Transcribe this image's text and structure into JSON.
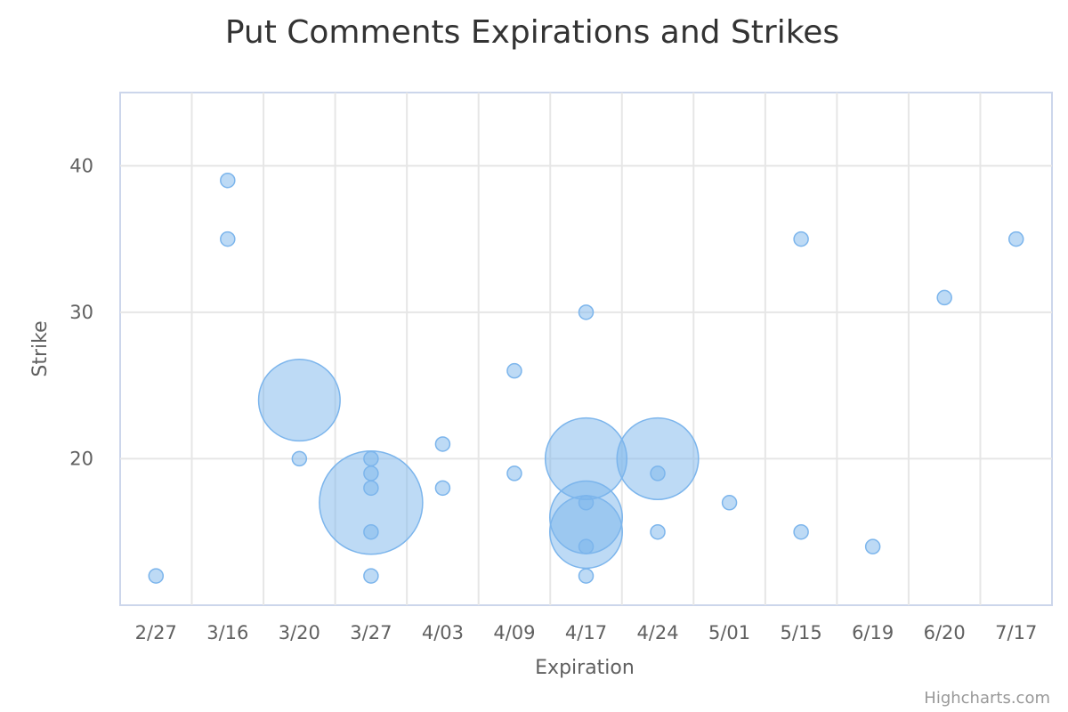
{
  "chart_data": {
    "type": "bubble",
    "title": "Put Comments Expirations and Strikes",
    "xlabel": "Expiration",
    "ylabel": "Strike",
    "categories": [
      "2/27",
      "3/16",
      "3/20",
      "3/27",
      "4/03",
      "4/09",
      "4/17",
      "4/24",
      "5/01",
      "5/15",
      "6/19",
      "6/20",
      "7/17"
    ],
    "ylim": [
      10,
      45
    ],
    "yticks": [
      20,
      30,
      40
    ],
    "grid": true,
    "legend": "none",
    "colors": {
      "fill": "rgba(124,181,236,0.5)",
      "stroke": "#7cb5ec"
    },
    "series": [
      {
        "points": [
          {
            "x": "2/27",
            "y": 12,
            "z": 1
          },
          {
            "x": "3/16",
            "y": 39,
            "z": 1
          },
          {
            "x": "3/16",
            "y": 35,
            "z": 1
          },
          {
            "x": "3/20",
            "y": 24,
            "z": 5
          },
          {
            "x": "3/20",
            "y": 20,
            "z": 1
          },
          {
            "x": "3/27",
            "y": 20,
            "z": 1
          },
          {
            "x": "3/27",
            "y": 19,
            "z": 1
          },
          {
            "x": "3/27",
            "y": 18,
            "z": 1
          },
          {
            "x": "3/27",
            "y": 17,
            "z": 8
          },
          {
            "x": "3/27",
            "y": 15,
            "z": 1
          },
          {
            "x": "3/27",
            "y": 12,
            "z": 1
          },
          {
            "x": "4/03",
            "y": 21,
            "z": 1
          },
          {
            "x": "4/03",
            "y": 18,
            "z": 1
          },
          {
            "x": "4/09",
            "y": 26,
            "z": 1
          },
          {
            "x": "4/09",
            "y": 19,
            "z": 1
          },
          {
            "x": "4/17",
            "y": 30,
            "z": 1
          },
          {
            "x": "4/17",
            "y": 20,
            "z": 5
          },
          {
            "x": "4/17",
            "y": 17,
            "z": 1
          },
          {
            "x": "4/17",
            "y": 16,
            "z": 4
          },
          {
            "x": "4/17",
            "y": 15,
            "z": 4
          },
          {
            "x": "4/17",
            "y": 14,
            "z": 1
          },
          {
            "x": "4/17",
            "y": 12,
            "z": 1
          },
          {
            "x": "4/24",
            "y": 20,
            "z": 5
          },
          {
            "x": "4/24",
            "y": 19,
            "z": 1
          },
          {
            "x": "4/24",
            "y": 15,
            "z": 1
          },
          {
            "x": "5/01",
            "y": 17,
            "z": 1
          },
          {
            "x": "5/15",
            "y": 35,
            "z": 1
          },
          {
            "x": "5/15",
            "y": 15,
            "z": 1
          },
          {
            "x": "6/19",
            "y": 14,
            "z": 1
          },
          {
            "x": "6/20",
            "y": 31,
            "z": 1
          },
          {
            "x": "7/17",
            "y": 35,
            "z": 1
          }
        ]
      }
    ]
  },
  "credits": "Highcharts.com"
}
